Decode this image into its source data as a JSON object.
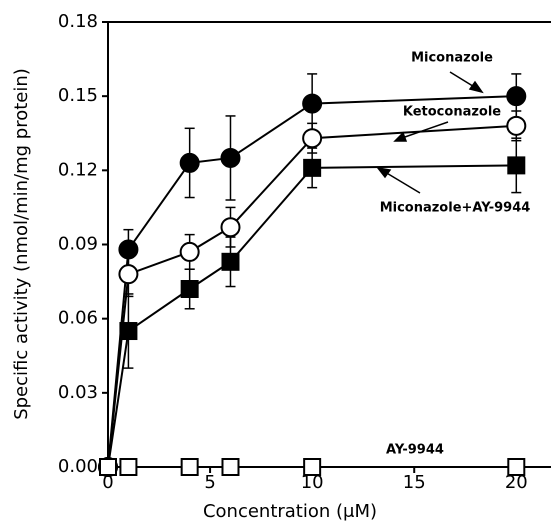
{
  "chart_data": {
    "type": "line",
    "x_label": "Concentration (μM)",
    "y_label": "Specific activity (nmol/min/mg protein)",
    "xlim": [
      0,
      21.7
    ],
    "xticks": [
      0,
      5,
      10,
      15,
      20
    ],
    "ylim": [
      0,
      0.18
    ],
    "yticks": [
      {
        "value": 0,
        "label": "0.00"
      },
      {
        "value": 0.03,
        "label": "0.03"
      },
      {
        "value": 0.06,
        "label": "0.06"
      },
      {
        "value": 0.09,
        "label": "0.09"
      },
      {
        "value": 0.12,
        "label": "0.12"
      },
      {
        "value": 0.15,
        "label": "0.15"
      },
      {
        "value": 0.18,
        "label": "0.18"
      }
    ],
    "x": [
      0,
      1,
      4,
      6,
      10,
      20
    ],
    "series": [
      {
        "name": "Miconazole",
        "color": "#000000",
        "marker": "filled-circle",
        "values": [
          0,
          0.088,
          0.123,
          0.125,
          0.147,
          0.15
        ],
        "errors": [
          0,
          0.008,
          0.014,
          0.017,
          0.012,
          0.009
        ]
      },
      {
        "name": "Ketoconazole",
        "color": "#000000",
        "marker": "open-circle",
        "values": [
          0,
          0.078,
          0.087,
          0.097,
          0.133,
          0.138
        ],
        "errors": [
          0,
          0.009,
          0.007,
          0.008,
          0.006,
          0.006
        ]
      },
      {
        "name": "Miconazole+AY-9944",
        "color": "#000000",
        "marker": "filled-square",
        "values": [
          0,
          0.055,
          0.072,
          0.083,
          0.121,
          0.122
        ],
        "errors": [
          0,
          0.015,
          0.008,
          0.01,
          0.008,
          0.011
        ]
      },
      {
        "name": "AY-9944",
        "color": "#000000",
        "marker": "open-square",
        "values": [
          0,
          0,
          0,
          0,
          0,
          0
        ],
        "errors": [
          0,
          0,
          0,
          0,
          0,
          0
        ]
      }
    ]
  }
}
